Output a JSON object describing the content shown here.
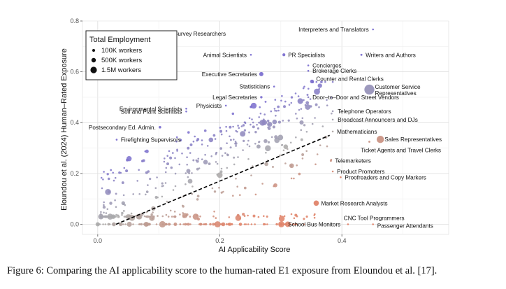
{
  "chart_data": {
    "type": "scatter",
    "title": "",
    "xlabel": "AI Applicability Score",
    "ylabel": "Eloundou et al. (2024) Human–Rated Exposure",
    "xlim": [
      -0.025,
      0.575
    ],
    "ylim": [
      -0.04,
      0.8
    ],
    "x_ticks": [
      "0.0",
      "0.2",
      "0.4"
    ],
    "y_ticks": [
      "0.0",
      "0.2",
      "0.4",
      "0.6",
      "0.8"
    ],
    "grid": true,
    "legend": {
      "title": "Total Employment",
      "placement": "top-left",
      "items": [
        {
          "label": "100K workers",
          "employment_k": 100
        },
        {
          "label": "500K workers",
          "employment_k": 500
        },
        {
          "label": "1.5M workers",
          "employment_k": 1500
        }
      ]
    },
    "trend_line": {
      "style": "dashed",
      "color": "#000000",
      "from": [
        0.03,
        0.0
      ],
      "to": [
        0.38,
        0.35
      ]
    },
    "colors": {
      "high_exposure": "#7b6fd0",
      "mid": "#aaaaaa",
      "high_applicability": "#e0846a"
    },
    "labeled_points": [
      {
        "label": "Survey Researchers",
        "x": 0.118,
        "y": 0.75,
        "size_k": 60
      },
      {
        "label": "Interpreters and Translators",
        "x": 0.451,
        "y": 0.767,
        "size_k": 60
      },
      {
        "label": "Animal Scientists",
        "x": 0.251,
        "y": 0.667,
        "size_k": 20
      },
      {
        "label": "PR Specialists",
        "x": 0.305,
        "y": 0.667,
        "size_k": 250
      },
      {
        "label": "Writers and Authors",
        "x": 0.432,
        "y": 0.667,
        "size_k": 120
      },
      {
        "label": "Concierges",
        "x": 0.345,
        "y": 0.625,
        "size_k": 40
      },
      {
        "label": "Brokerage Clerks",
        "x": 0.345,
        "y": 0.604,
        "size_k": 20
      },
      {
        "label": "Executive Secretaries",
        "x": 0.268,
        "y": 0.591,
        "size_k": 500
      },
      {
        "label": "Counter and Rental Clerks",
        "x": 0.351,
        "y": 0.562,
        "size_k": 400
      },
      {
        "label": "Statisticians",
        "x": 0.289,
        "y": 0.542,
        "size_k": 30
      },
      {
        "label": "Customer Service Representatives",
        "x": 0.445,
        "y": 0.53,
        "size_k": 2800
      },
      {
        "label": "Legal Secretaries",
        "x": 0.268,
        "y": 0.5,
        "size_k": 160
      },
      {
        "label": "Door–to–Door and Street Vendors",
        "x": 0.345,
        "y": 0.5,
        "size_k": 40
      },
      {
        "label": "Physicists",
        "x": 0.21,
        "y": 0.467,
        "size_k": 20
      },
      {
        "label": "Environmental Scientists",
        "x": 0.145,
        "y": 0.455,
        "size_k": 80
      },
      {
        "label": "Soil and Plant Scientists",
        "x": 0.145,
        "y": 0.444,
        "size_k": 20
      },
      {
        "label": "Telephone Operators",
        "x": 0.385,
        "y": 0.445,
        "size_k": 20
      },
      {
        "label": "Broadcast Announcers and DJs",
        "x": 0.385,
        "y": 0.412,
        "size_k": 50
      },
      {
        "label": "Postsecondary Ed. Admin.",
        "x": 0.102,
        "y": 0.382,
        "size_k": 180
      },
      {
        "label": "Mathematicians",
        "x": 0.385,
        "y": 0.365,
        "size_k": 20
      },
      {
        "label": "Sales Representatives",
        "x": 0.463,
        "y": 0.334,
        "size_k": 1500
      },
      {
        "label": "Firefighting Supervisors",
        "x": 0.031,
        "y": 0.333,
        "size_k": 60
      },
      {
        "label": "Ticket Agents and Travel Clerks",
        "x": 0.445,
        "y": 0.325,
        "size_k": 110
      },
      {
        "label": "Telemarketers",
        "x": 0.382,
        "y": 0.25,
        "size_k": 120
      },
      {
        "label": "Product Promoters",
        "x": 0.385,
        "y": 0.208,
        "size_k": 60
      },
      {
        "label": "Proofreaders and Copy Markers",
        "x": 0.398,
        "y": 0.185,
        "size_k": 20
      },
      {
        "label": "Market Research Analysts",
        "x": 0.358,
        "y": 0.083,
        "size_k": 800
      },
      {
        "label": "CNC Tool Programmers",
        "x": 0.41,
        "y": 0.0,
        "size_k": 30
      },
      {
        "label": "School Bus Monitors",
        "x": 0.305,
        "y": 0.0,
        "size_k": 60
      },
      {
        "label": "Passenger Attendants",
        "x": 0.451,
        "y": 0.0,
        "size_k": 20
      }
    ]
  },
  "caption": "Figure 6: Comparing the AI applicability score to the human-rated E1 exposure from Eloundou et al. [17]."
}
